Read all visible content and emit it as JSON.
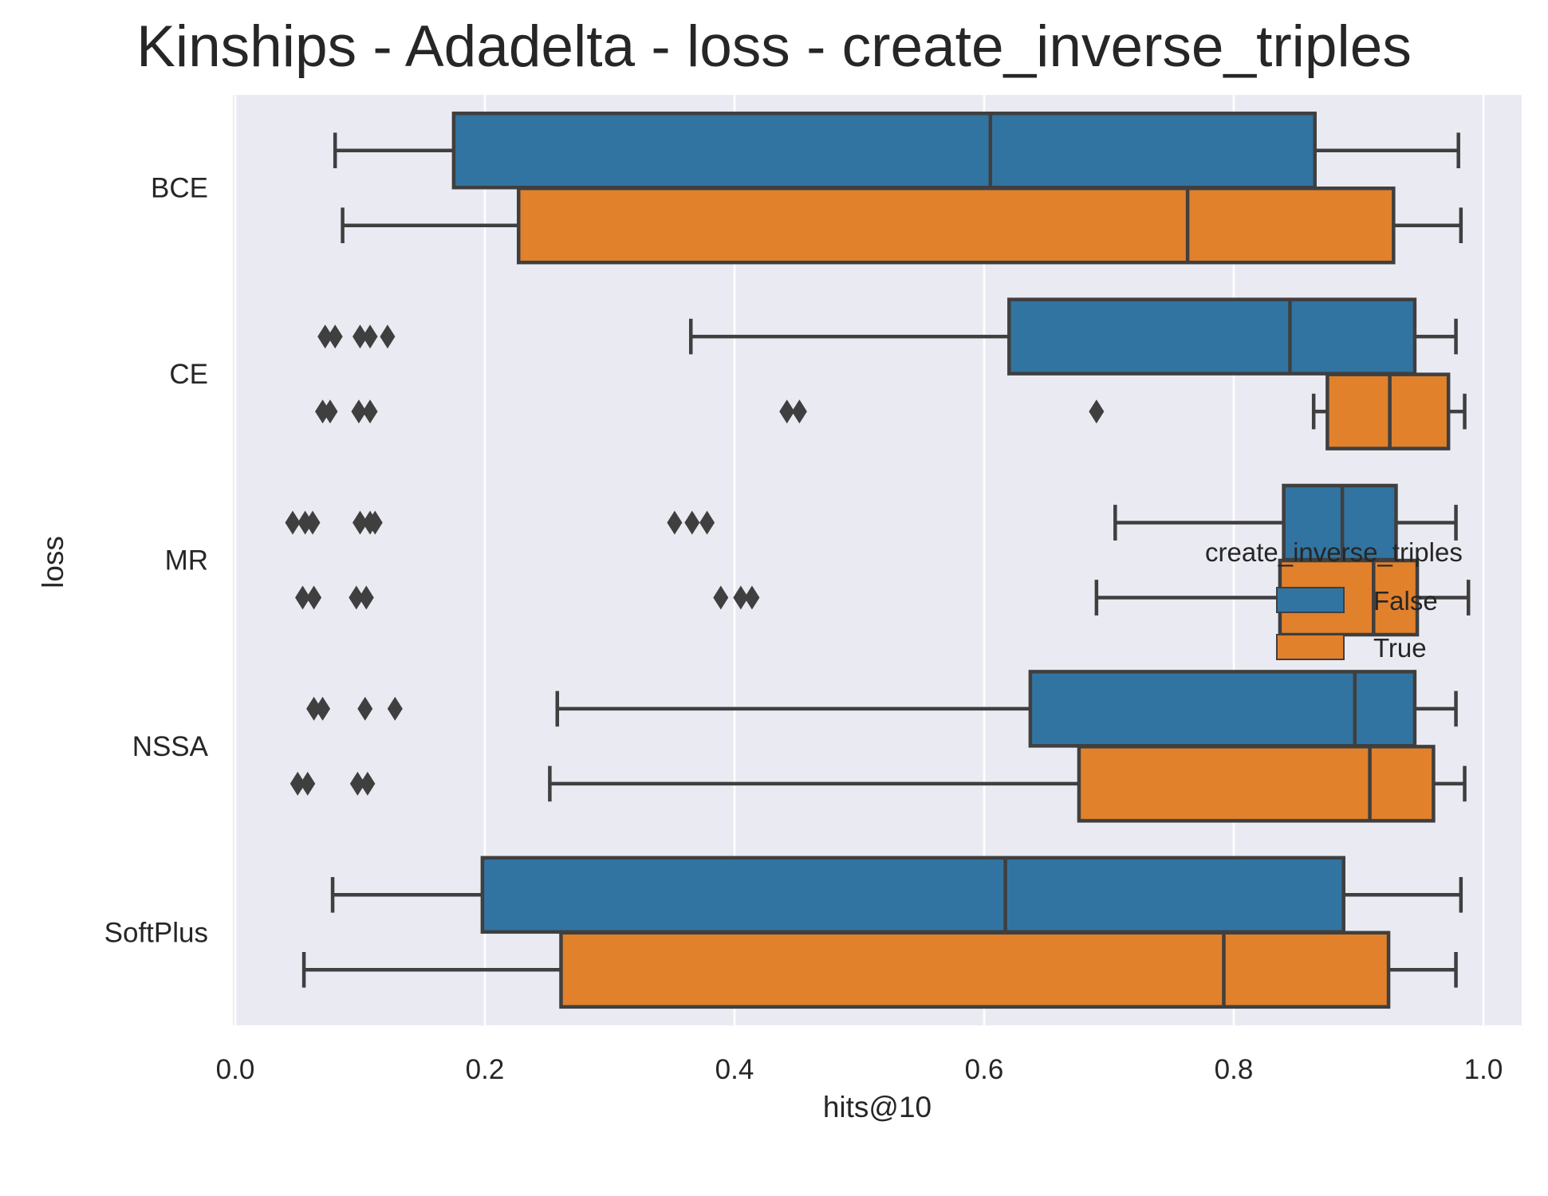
{
  "chart_data": {
    "type": "box",
    "title": "Kinships - Adadelta - loss - create_inverse_triples",
    "xlabel": "hits@10",
    "ylabel": "loss",
    "xlim": [
      0.0,
      1.03
    ],
    "x_ticks": [
      "0.0",
      "0.2",
      "0.4",
      "0.6",
      "0.8",
      "1.0"
    ],
    "orientation": "horizontal",
    "grid": true,
    "categories": [
      "BCE",
      "CE",
      "MR",
      "NSSA",
      "SoftPlus"
    ],
    "legend": {
      "title": "create_inverse_triples",
      "placement": "center-right"
    },
    "series": [
      {
        "name": "False",
        "color": "#3274a1",
        "boxes": [
          {
            "category": "BCE",
            "whislo": 0.08,
            "q1": 0.175,
            "median": 0.605,
            "q3": 0.865,
            "whishi": 0.98,
            "fliers": []
          },
          {
            "category": "CE",
            "whislo": 0.365,
            "q1": 0.62,
            "median": 0.845,
            "q3": 0.945,
            "whishi": 0.978,
            "fliers": [
              0.072,
              0.08,
              0.1,
              0.108,
              0.122
            ]
          },
          {
            "category": "MR",
            "whislo": 0.705,
            "q1": 0.84,
            "median": 0.887,
            "q3": 0.93,
            "whishi": 0.978,
            "fliers": [
              0.046,
              0.056,
              0.062,
              0.1,
              0.108,
              0.112,
              0.352,
              0.366,
              0.378
            ]
          },
          {
            "category": "NSSA",
            "whislo": 0.258,
            "q1": 0.637,
            "median": 0.897,
            "q3": 0.945,
            "whishi": 0.978,
            "fliers": [
              0.063,
              0.07,
              0.104,
              0.128
            ]
          },
          {
            "category": "SoftPlus",
            "whislo": 0.078,
            "q1": 0.198,
            "median": 0.617,
            "q3": 0.888,
            "whishi": 0.982,
            "fliers": []
          }
        ]
      },
      {
        "name": "True",
        "color": "#e1812c",
        "boxes": [
          {
            "category": "BCE",
            "whislo": 0.086,
            "q1": 0.227,
            "median": 0.763,
            "q3": 0.928,
            "whishi": 0.982,
            "fliers": []
          },
          {
            "category": "CE",
            "whislo": 0.864,
            "q1": 0.875,
            "median": 0.925,
            "q3": 0.972,
            "whishi": 0.985,
            "fliers": [
              0.07,
              0.076,
              0.099,
              0.108,
              0.442,
              0.452,
              0.69
            ]
          },
          {
            "category": "MR",
            "whislo": 0.69,
            "q1": 0.837,
            "median": 0.912,
            "q3": 0.947,
            "whishi": 0.988,
            "fliers": [
              0.054,
              0.063,
              0.097,
              0.105,
              0.389,
              0.405,
              0.414
            ]
          },
          {
            "category": "NSSA",
            "whislo": 0.252,
            "q1": 0.676,
            "median": 0.909,
            "q3": 0.96,
            "whishi": 0.985,
            "fliers": [
              0.05,
              0.058,
              0.098,
              0.106
            ]
          },
          {
            "category": "SoftPlus",
            "whislo": 0.055,
            "q1": 0.261,
            "median": 0.792,
            "q3": 0.924,
            "whishi": 0.978,
            "fliers": []
          }
        ]
      }
    ]
  }
}
